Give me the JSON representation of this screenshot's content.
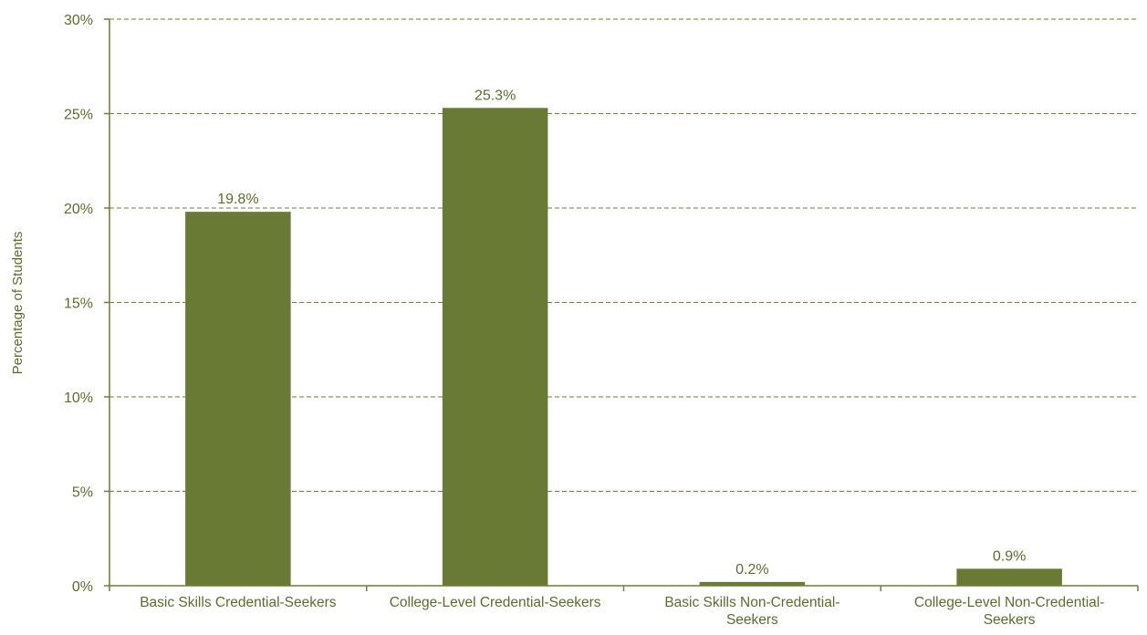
{
  "chart_data": {
    "type": "bar",
    "categories": [
      "Basic Skills Credential-Seekers",
      "College-Level Credential-Seekers",
      "Basic Skills Non-Credential-Seekers",
      "College-Level Non-Credential-Seekers"
    ],
    "category_label_lines": [
      [
        "Basic Skills Credential-Seekers"
      ],
      [
        "College-Level Credential-Seekers"
      ],
      [
        "Basic Skills Non-Credential-",
        "Seekers"
      ],
      [
        "College-Level Non-Credential-",
        "Seekers"
      ]
    ],
    "values": [
      19.8,
      25.3,
      0.2,
      0.9
    ],
    "data_labels": [
      "19.8%",
      "25.3%",
      "0.2%",
      "0.9%"
    ],
    "title": "",
    "xlabel": "",
    "ylabel": "Percentage of Students",
    "ylim": [
      0,
      30
    ],
    "yticks": [
      0,
      5,
      10,
      15,
      20,
      25,
      30
    ],
    "ytick_labels": [
      "0%",
      "5%",
      "10%",
      "15%",
      "20%",
      "25%",
      "30%"
    ],
    "grid": true,
    "legend": "none",
    "bar_color": "#687a34"
  }
}
